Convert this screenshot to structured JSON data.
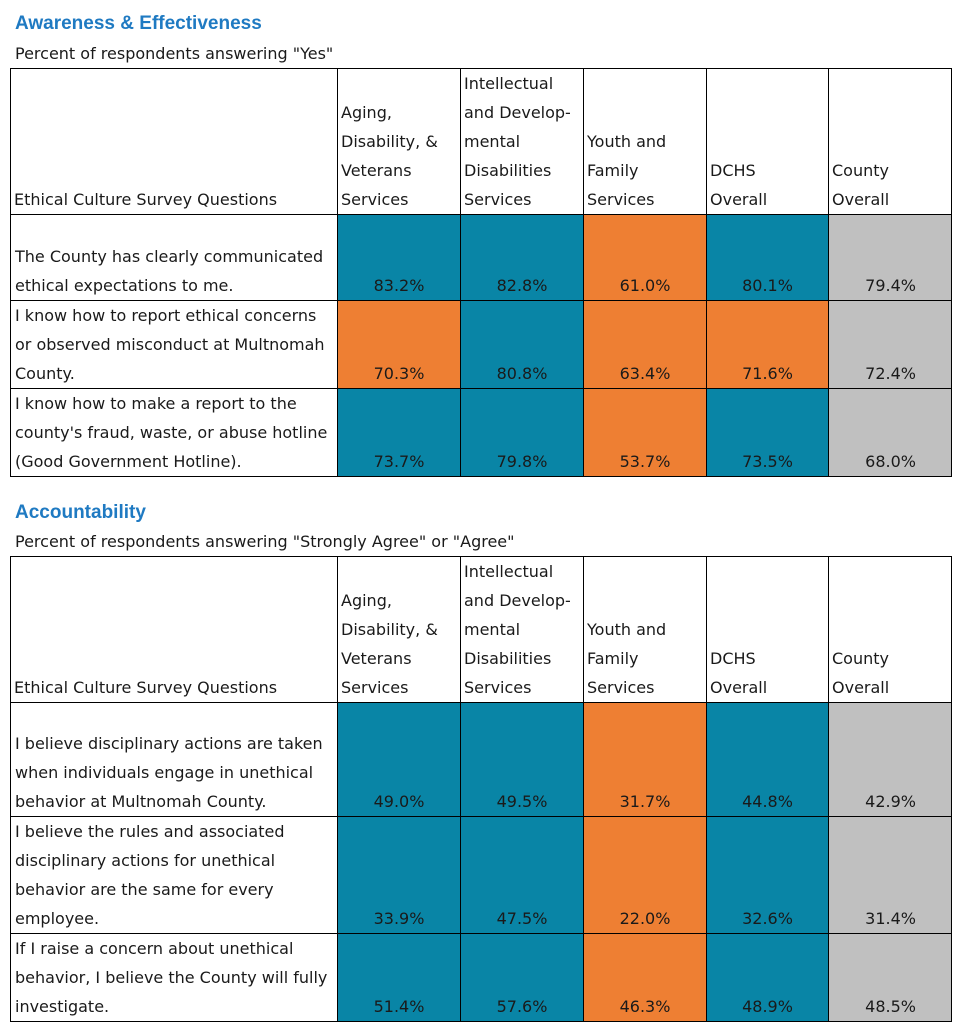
{
  "colors": {
    "blue": "#0985a6",
    "orange": "#ee7f33",
    "gray": "#c0c0c0",
    "title": "#1f7ac2"
  },
  "sections": [
    {
      "title": "Awareness & Effectiveness",
      "subtitle": "Percent of respondents answering \"Yes\"",
      "headers": [
        "Ethical Culture Survey Questions",
        "Aging,\nDisability, &\nVeterans\nServices",
        "Intellectual\nand Develop-\nmental\nDisabilities\nServices",
        "Youth and\nFamily\nServices",
        "DCHS\nOverall",
        "County\nOverall"
      ],
      "rows": [
        {
          "question": "The County has clearly communicated ethical expectations to me.",
          "values": [
            "83.2%",
            "82.8%",
            "61.0%",
            "80.1%",
            "79.4%"
          ],
          "colors": [
            "blue",
            "blue",
            "orange",
            "blue",
            "gray"
          ]
        },
        {
          "question": "I know how to report ethical concerns or observed misconduct at Multnomah County.",
          "values": [
            "70.3%",
            "80.8%",
            "63.4%",
            "71.6%",
            "72.4%"
          ],
          "colors": [
            "orange",
            "blue",
            "orange",
            "orange",
            "gray"
          ]
        },
        {
          "question": "I know how to make a report to the county's fraud, waste, or abuse hotline (Good Government Hotline).",
          "values": [
            "73.7%",
            "79.8%",
            "53.7%",
            "73.5%",
            "68.0%"
          ],
          "colors": [
            "blue",
            "blue",
            "orange",
            "blue",
            "gray"
          ]
        }
      ]
    },
    {
      "title": "Accountability",
      "subtitle": "Percent of respondents answering \"Strongly Agree\" or \"Agree\"",
      "headers": [
        "Ethical Culture Survey Questions",
        "Aging,\nDisability, &\nVeterans\nServices",
        "Intellectual\nand Develop-\nmental\nDisabilities\nServices",
        "Youth and\nFamily\nServices",
        "DCHS\nOverall",
        "County\nOverall"
      ],
      "rows": [
        {
          "question": "I believe disciplinary actions are taken when individuals engage in unethical behavior at Multnomah County.",
          "values": [
            "49.0%",
            "49.5%",
            "31.7%",
            "44.8%",
            "42.9%"
          ],
          "colors": [
            "blue",
            "blue",
            "orange",
            "blue",
            "gray"
          ]
        },
        {
          "question": "I believe the rules and associated disciplinary actions for unethical behavior are the same for every employee.",
          "values": [
            "33.9%",
            "47.5%",
            "22.0%",
            "32.6%",
            "31.4%"
          ],
          "colors": [
            "blue",
            "blue",
            "orange",
            "blue",
            "gray"
          ]
        },
        {
          "question": "If I raise a concern about unethical behavior, I believe the County will fully investigate.",
          "values": [
            "51.4%",
            "57.6%",
            "46.3%",
            "48.9%",
            "48.5%"
          ],
          "colors": [
            "blue",
            "blue",
            "orange",
            "blue",
            "gray"
          ]
        }
      ]
    }
  ]
}
